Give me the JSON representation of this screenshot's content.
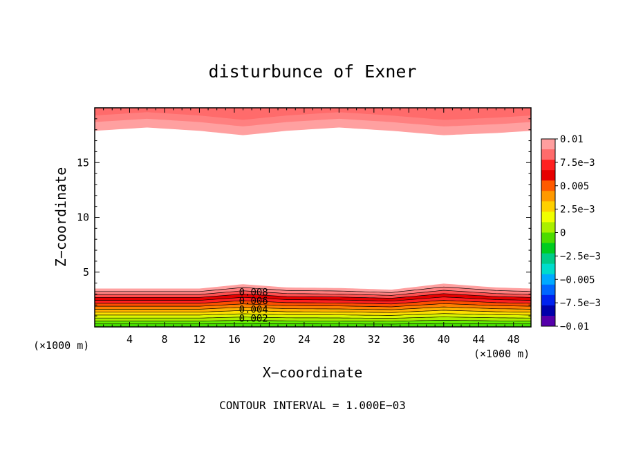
{
  "chart_data": {
    "type": "contour",
    "title": "disturbunce of Exner",
    "xlabel": "X−coordinate",
    "ylabel": "Z−coordinate",
    "x_unit_left": "(×1000 m)",
    "x_unit_right": "(×1000 m)",
    "footer": "CONTOUR INTERVAL = 1.000E−03",
    "xlim": [
      0,
      50
    ],
    "ylim": [
      0,
      20
    ],
    "xticks": [
      "4",
      "8",
      "12",
      "16",
      "20",
      "24",
      "28",
      "32",
      "36",
      "40",
      "44",
      "48"
    ],
    "xtick_values": [
      4,
      8,
      12,
      16,
      20,
      24,
      28,
      32,
      36,
      40,
      44,
      48
    ],
    "yticks": [
      "5",
      "10",
      "15"
    ],
    "ytick_values": [
      5,
      10,
      15
    ],
    "contour_labels": [
      {
        "text": "0.008",
        "x": 18.2,
        "z": 3.2
      },
      {
        "text": "0.006",
        "x": 18.2,
        "z": 2.4
      },
      {
        "text": "0.004",
        "x": 18.2,
        "z": 1.6
      },
      {
        "text": "0.002",
        "x": 18.2,
        "z": 0.8
      }
    ],
    "surface_profile": {
      "x": [
        0,
        6,
        12,
        17,
        22,
        28,
        34,
        40,
        46,
        50
      ],
      "z_top_layer": [
        3.5,
        3.5,
        3.5,
        3.9,
        3.6,
        3.55,
        3.4,
        3.95,
        3.6,
        3.5
      ],
      "z_upper_boundary": [
        17.9,
        18.2,
        17.9,
        17.5,
        17.9,
        18.2,
        17.9,
        17.5,
        17.7,
        17.9
      ]
    },
    "colorbar": {
      "labels": [
        "0.01",
        "7.5e−3",
        "0.005",
        "2.5e−3",
        "0",
        "−2.5e−3",
        "−0.005",
        "−7.5e−3",
        "−0.01"
      ],
      "colors": [
        "#ff9e9e",
        "#ff6b6b",
        "#ff2020",
        "#e60000",
        "#ff5a00",
        "#ff9900",
        "#ffd000",
        "#f0ff00",
        "#aaf000",
        "#4ddc00",
        "#00cc20",
        "#00cc88",
        "#00dccc",
        "#00aaff",
        "#0066ff",
        "#0022ee",
        "#0000aa",
        "#5500aa"
      ]
    }
  }
}
